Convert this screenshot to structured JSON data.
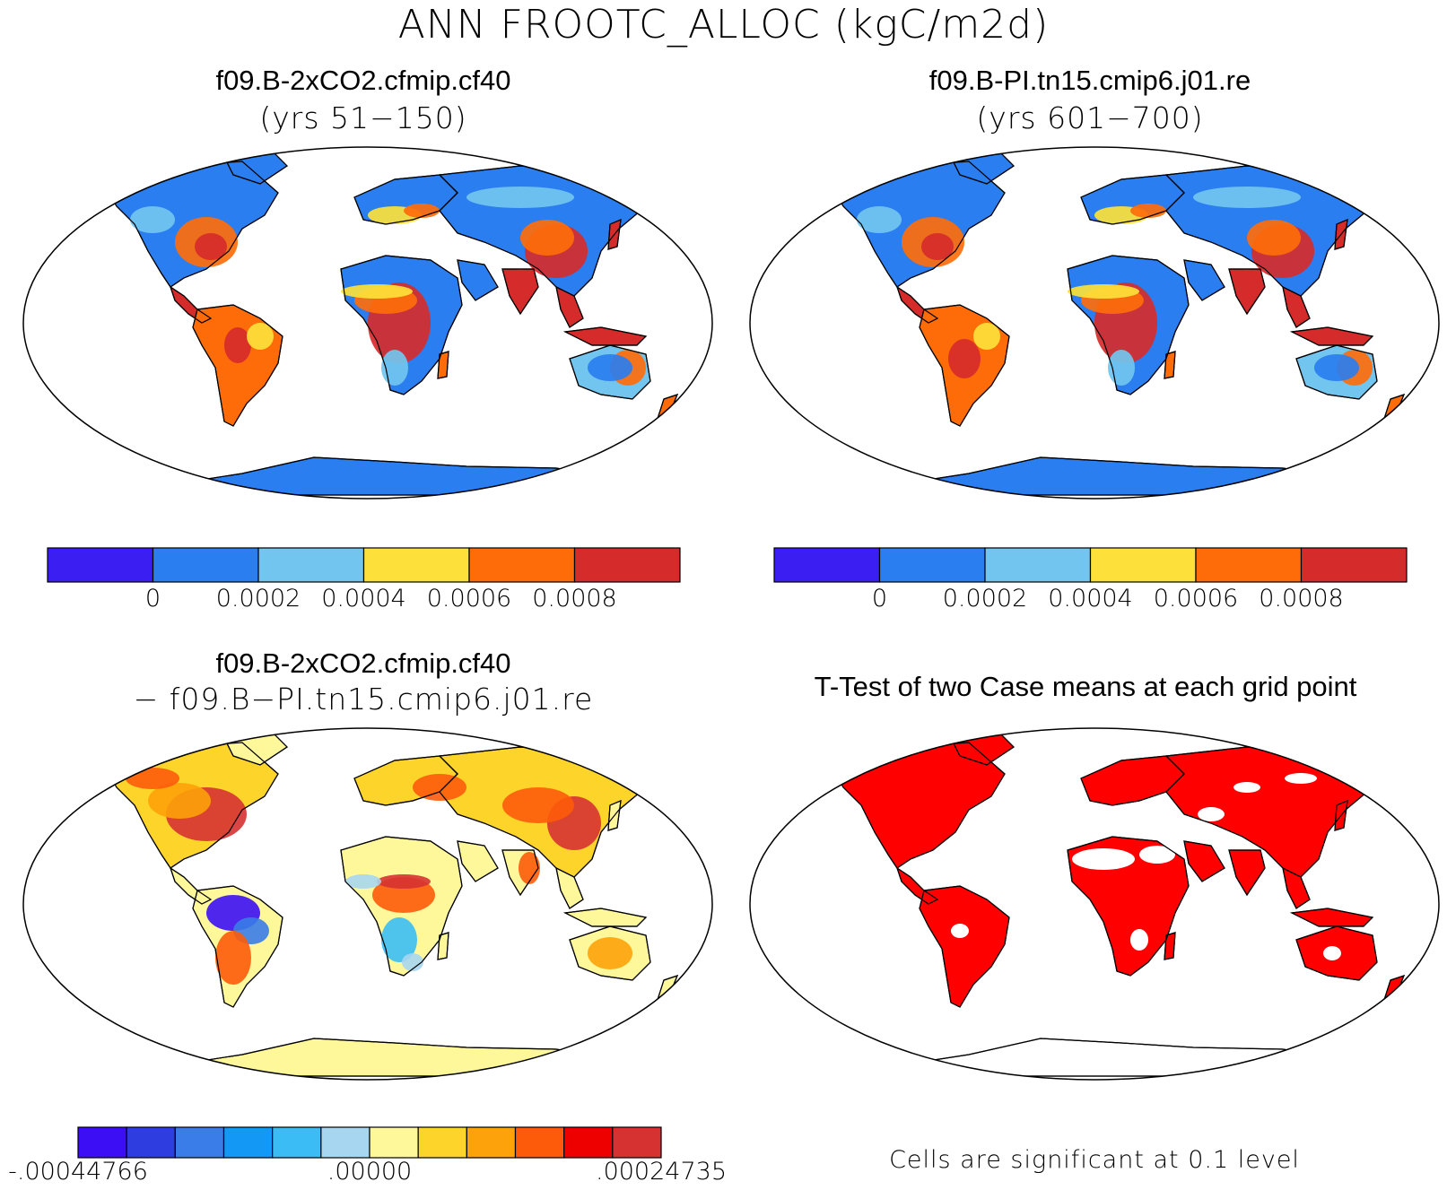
{
  "title": "ANN FROOTC_ALLOC (kgC/m2d)",
  "panels": [
    {
      "id": "case1",
      "title": "f09.B-2xCO2.cfmip.cf40",
      "subtitle": "(yrs 51−150)",
      "colorbar": {
        "colors": [
          "#3b1ef2",
          "#2a7ef0",
          "#72c5ef",
          "#fde13a",
          "#fe6c0a",
          "#d62b2b"
        ],
        "labels": [
          "0",
          "0.0002",
          "0.0004",
          "0.0006",
          "0.0008"
        ]
      }
    },
    {
      "id": "case2",
      "title": "f09.B-PI.tn15.cmip6.j01.re",
      "subtitle": "(yrs 601−700)",
      "colorbar": {
        "colors": [
          "#3b1ef2",
          "#2a7ef0",
          "#72c5ef",
          "#fde13a",
          "#fe6c0a",
          "#d62b2b"
        ],
        "labels": [
          "0",
          "0.0002",
          "0.0004",
          "0.0006",
          "0.0008"
        ]
      }
    },
    {
      "id": "difference",
      "title": "f09.B-2xCO2.cfmip.cf40",
      "subtitle": "− f09.B−PI.tn15.cmip6.j01.re",
      "colorbar": {
        "colors": [
          "#3b0ef5",
          "#2d3de0",
          "#3a7ce8",
          "#1498f5",
          "#3bbcf5",
          "#a7d6f0",
          "#fff89a",
          "#fdd42a",
          "#fda20a",
          "#fd5b0a",
          "#ee0000",
          "#d63232"
        ],
        "labels": [
          "-.00044766",
          ".00000",
          ".00024735"
        ]
      }
    },
    {
      "id": "ttest",
      "title": "T-Test of two Case means at each grid point",
      "note": "Cells are significant at 0.1 level",
      "color": "#ff0000"
    }
  ]
}
